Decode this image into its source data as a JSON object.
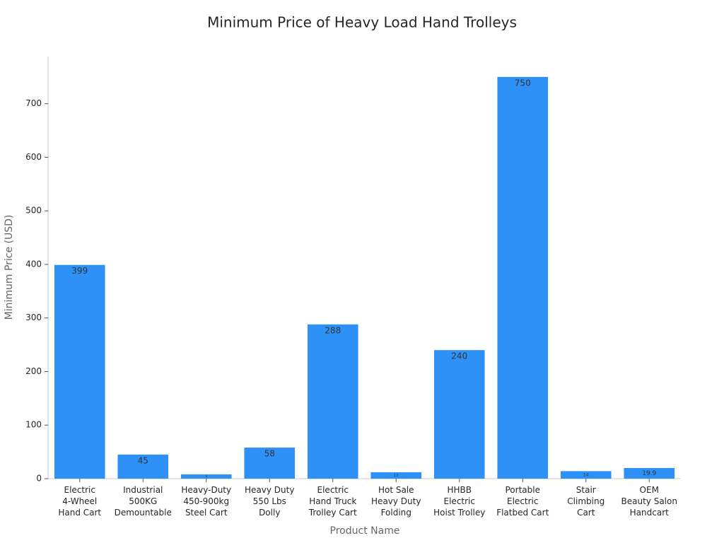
{
  "chart_data": {
    "type": "bar",
    "title": "Minimum Price of Heavy Load Hand Trolleys",
    "x_label": "Product Name",
    "y_label": "Minimum Price (USD)",
    "categories": [
      "Electric\n4-Wheel\nHand Cart",
      "Industrial\n500KG\nDemountable",
      "Heavy-Duty\n450-900kg\nSteel Cart",
      "Heavy Duty\n550 Lbs\nDolly",
      "Electric\nHand Truck\nTrolley Cart",
      "Hot Sale\nHeavy Duty\nFolding",
      "HHBB\nElectric\nHoist Trolley",
      "Portable\nElectric\nFlatbed Cart",
      "Stair\nClimbing\nCart",
      "OEM\nBeauty Salon\nHandcart"
    ],
    "values": [
      399,
      45,
      8,
      58,
      288,
      12,
      240,
      750,
      14,
      19.9
    ],
    "color": "#2e91f7",
    "ylim": [
      0,
      788
    ],
    "yticks": [
      0,
      100,
      200,
      300,
      400,
      500,
      600,
      700
    ],
    "grid": false
  }
}
